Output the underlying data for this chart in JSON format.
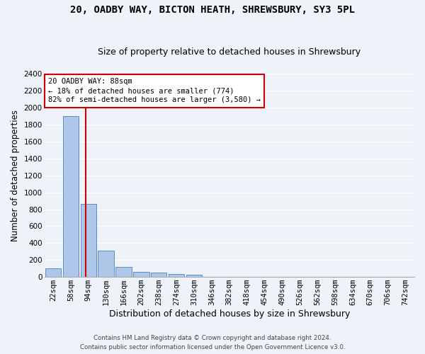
{
  "title_line1": "20, OADBY WAY, BICTON HEATH, SHREWSBURY, SY3 5PL",
  "title_line2": "Size of property relative to detached houses in Shrewsbury",
  "xlabel": "Distribution of detached houses by size in Shrewsbury",
  "ylabel": "Number of detached properties",
  "bar_labels": [
    "22sqm",
    "58sqm",
    "94sqm",
    "130sqm",
    "166sqm",
    "202sqm",
    "238sqm",
    "274sqm",
    "310sqm",
    "346sqm",
    "382sqm",
    "418sqm",
    "454sqm",
    "490sqm",
    "526sqm",
    "562sqm",
    "598sqm",
    "634sqm",
    "670sqm",
    "706sqm",
    "742sqm"
  ],
  "bar_values": [
    100,
    1900,
    860,
    310,
    115,
    60,
    50,
    35,
    25,
    0,
    0,
    0,
    0,
    0,
    0,
    0,
    0,
    0,
    0,
    0,
    0
  ],
  "bar_color": "#aec6e8",
  "bar_edge_color": "#5a8fc0",
  "vline_color": "#cc0000",
  "annotation_text": "20 OADBY WAY: 88sqm\n← 18% of detached houses are smaller (774)\n82% of semi-detached houses are larger (3,580) →",
  "annotation_box_color": "#cc0000",
  "ylim": [
    0,
    2400
  ],
  "yticks": [
    0,
    200,
    400,
    600,
    800,
    1000,
    1200,
    1400,
    1600,
    1800,
    2000,
    2200,
    2400
  ],
  "footer_line1": "Contains HM Land Registry data © Crown copyright and database right 2024.",
  "footer_line2": "Contains public sector information licensed under the Open Government Licence v3.0.",
  "bg_color": "#eef2f9",
  "plot_bg_color": "#eef2f9",
  "grid_color": "#ffffff",
  "title_fontsize": 10,
  "subtitle_fontsize": 9,
  "axis_label_fontsize": 8.5,
  "tick_fontsize": 7.5,
  "figsize": [
    6.0,
    5.0
  ],
  "dpi": 100
}
